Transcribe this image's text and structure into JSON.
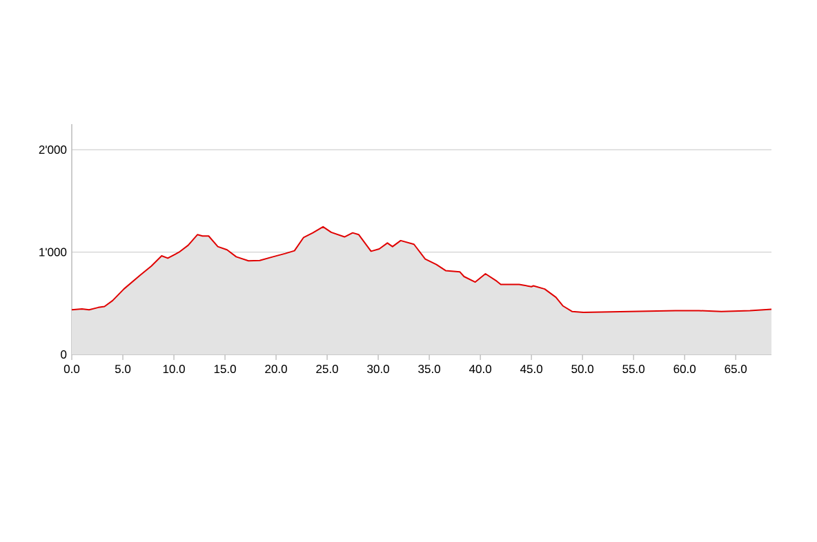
{
  "chart_data": {
    "type": "area",
    "x": [
      0,
      1.0,
      1.7,
      2.6,
      3.2,
      4.0,
      5.1,
      6.7,
      7.8,
      8.8,
      9.4,
      10.5,
      11.4,
      12.3,
      12.8,
      13.4,
      14.3,
      15.2,
      16.1,
      17.3,
      18.4,
      19.7,
      20.9,
      21.8,
      22.7,
      23.6,
      24.6,
      25.4,
      26.7,
      27.5,
      28.1,
      29.3,
      30.1,
      30.9,
      31.4,
      32.2,
      33.5,
      34.6,
      35.7,
      36.6,
      38.0,
      38.4,
      39.5,
      40.5,
      41.6,
      42.0,
      43.8,
      45.0,
      45.2,
      46.3,
      47.4,
      48.1,
      49.0,
      50.1,
      51.9,
      54.6,
      59.1,
      61.4,
      63.6,
      66.4,
      68.5
    ],
    "series": [
      {
        "color": "#e00000",
        "values": [
          436,
          445,
          436,
          459,
          468,
          526,
          639,
          774,
          864,
          963,
          940,
          999,
          1067,
          1170,
          1157,
          1157,
          1053,
          1022,
          954,
          914,
          918,
          954,
          986,
          1013,
          1143,
          1188,
          1247,
          1193,
          1148,
          1188,
          1170,
          1008,
          1031,
          1089,
          1053,
          1112,
          1076,
          932,
          878,
          819,
          806,
          761,
          707,
          788,
          716,
          684,
          684,
          662,
          670,
          639,
          558,
          473,
          419,
          410,
          414,
          419,
          428,
          428,
          419,
          428,
          441
        ]
      }
    ],
    "xlim": [
      0,
      68.5
    ],
    "ylim": [
      0,
      2250
    ],
    "xticks": [
      {
        "value": 0,
        "label": "0.0"
      },
      {
        "value": 5,
        "label": "5.0"
      },
      {
        "value": 10,
        "label": "10.0"
      },
      {
        "value": 15,
        "label": "15.0"
      },
      {
        "value": 20,
        "label": "20.0"
      },
      {
        "value": 25,
        "label": "25.0"
      },
      {
        "value": 30,
        "label": "30.0"
      },
      {
        "value": 35,
        "label": "35.0"
      },
      {
        "value": 40,
        "label": "40.0"
      },
      {
        "value": 45,
        "label": "45.0"
      },
      {
        "value": 50,
        "label": "50.0"
      },
      {
        "value": 55,
        "label": "55.0"
      },
      {
        "value": 60,
        "label": "60.0"
      },
      {
        "value": 65,
        "label": "65.0"
      }
    ],
    "yticks": [
      0,
      {
        "value": 1000,
        "label": "1'000"
      },
      {
        "value": 2000,
        "label": "2'000"
      }
    ],
    "grid": "y"
  }
}
